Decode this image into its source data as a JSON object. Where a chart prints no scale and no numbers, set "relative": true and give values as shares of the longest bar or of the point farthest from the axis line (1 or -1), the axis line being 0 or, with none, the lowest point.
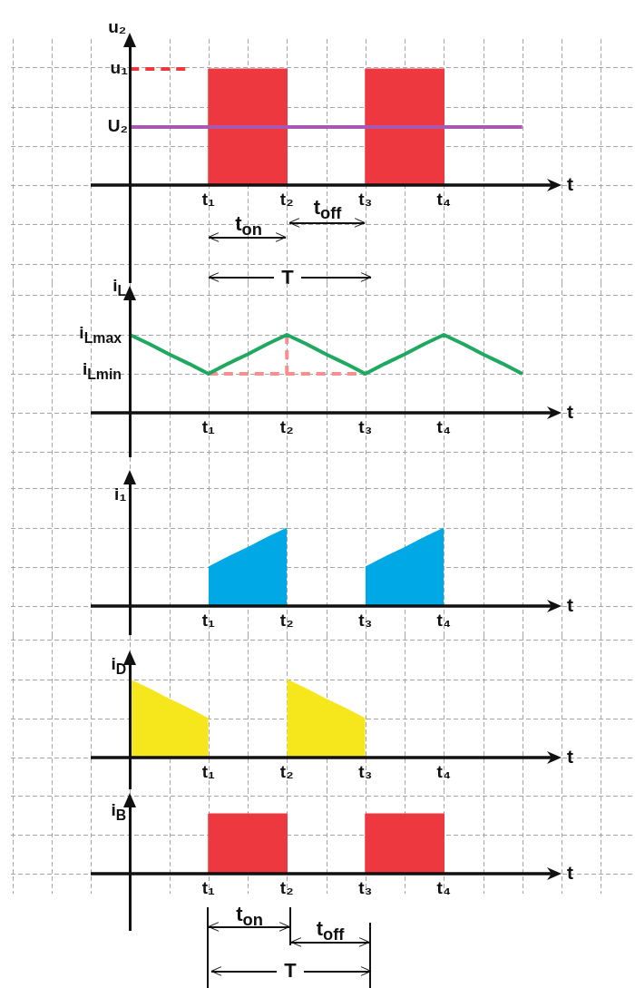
{
  "chart_data": [
    {
      "type": "area",
      "ylabel": "u₂",
      "xlabel": "t",
      "relative": true,
      "grid": true,
      "categories": [
        null,
        null,
        null,
        null,
        null,
        null,
        "t₁",
        null,
        null,
        null,
        "t₂",
        null,
        null,
        null,
        "t₃",
        null,
        null,
        null,
        "t₄",
        null,
        null,
        null,
        null,
        null,
        null
      ],
      "series": [
        {
          "color": "#ee3840",
          "x": [
            "t₁",
            "t₁",
            "t₂",
            "t₂"
          ],
          "values": [
            0,
            1,
            1,
            0
          ]
        },
        {
          "color": "#ee3840",
          "x": [
            "t₃",
            "t₃",
            "t₄",
            "t₄"
          ],
          "values": [
            0,
            1,
            1,
            0
          ]
        },
        {
          "type": "line",
          "color": "#a858b0",
          "values": [
            null,
            null,
            0.5,
            0.5,
            0.5,
            0.5,
            0.5,
            0.5,
            0.5,
            0.5,
            0.5,
            0.5,
            0.5,
            0.5,
            0.5,
            0.5,
            0.5,
            0.5,
            0.5,
            0.5,
            0.5,
            0.5,
            0.5,
            null,
            null
          ]
        },
        {
          "type": "line",
          "color": "#ee3840",
          "line_style": "dashed",
          "values": [
            null,
            null,
            1,
            1,
            1,
            1,
            null,
            null,
            null,
            null,
            null,
            null,
            null,
            null,
            null,
            null,
            null,
            null,
            null,
            null,
            null,
            null,
            null,
            null,
            null
          ]
        }
      ],
      "annotations": [
        "u₁",
        "U₂",
        "t$_{on}$",
        "t$_{off}$",
        "T"
      ]
    },
    {
      "type": "line",
      "ylabel": "i$_{L}$",
      "xlabel": "t",
      "relative": true,
      "grid": true,
      "categories": [
        null,
        null,
        null,
        null,
        null,
        null,
        "t₁",
        null,
        null,
        null,
        "t₂",
        null,
        null,
        null,
        "t₃",
        null,
        null,
        null,
        "t₄",
        null,
        null,
        null,
        null,
        null,
        null
      ],
      "series": [
        {
          "color": "#1ea860",
          "values": [
            null,
            null,
            1,
            0.88,
            0.75,
            0.63,
            0.5,
            0.63,
            0.75,
            0.88,
            1,
            0.88,
            0.75,
            0.63,
            0.5,
            0.63,
            0.75,
            0.88,
            1,
            0.88,
            0.75,
            0.63,
            0.5,
            null,
            null
          ]
        },
        {
          "color": "#f49090",
          "line_style": "dashed",
          "values": [
            null,
            null,
            null,
            null,
            null,
            null,
            0.5,
            0.5,
            0.5,
            0.5,
            0.5,
            0.5,
            0.5,
            0.5,
            0.5,
            null,
            null,
            null,
            null,
            null,
            null,
            null,
            null,
            null,
            null
          ]
        },
        {
          "color": "#f49090",
          "line_style": "dashed",
          "x": [
            "t₂",
            "t₂"
          ],
          "values": [
            1,
            0.5
          ]
        }
      ],
      "annotations": [
        "i$_{Lmax}$",
        "i$_{Lmin}$"
      ]
    },
    {
      "type": "area",
      "ylabel": "i₁",
      "xlabel": "t",
      "relative": true,
      "grid": true,
      "categories": [
        null,
        null,
        null,
        null,
        null,
        null,
        "t₁",
        null,
        null,
        null,
        "t₂",
        null,
        null,
        null,
        "t₃",
        null,
        null,
        null,
        "t₄",
        null,
        null,
        null,
        null,
        null,
        null
      ],
      "series": [
        {
          "color": "#00a9e6",
          "values": [
            null,
            null,
            null,
            null,
            null,
            null,
            0.5,
            0.63,
            0.75,
            0.88,
            1,
            null,
            null,
            null,
            0.5,
            0.63,
            0.75,
            0.88,
            1,
            null,
            null,
            null,
            null,
            null,
            null
          ]
        }
      ]
    },
    {
      "type": "area",
      "ylabel": "i$_{D}$",
      "xlabel": "t",
      "relative": true,
      "grid": true,
      "categories": [
        null,
        null,
        null,
        null,
        null,
        null,
        "t₁",
        null,
        null,
        null,
        "t₂",
        null,
        null,
        null,
        "t₃",
        null,
        null,
        null,
        "t₄",
        null,
        null,
        null,
        null,
        null,
        null
      ],
      "series": [
        {
          "color": "#f6e71c",
          "values": [
            null,
            null,
            1,
            0.88,
            0.75,
            0.63,
            0.5,
            null,
            null,
            null,
            1,
            0.88,
            0.75,
            0.63,
            0.5,
            null,
            null,
            null,
            null,
            null,
            null,
            null,
            null,
            null,
            null
          ]
        }
      ]
    },
    {
      "type": "area",
      "ylabel": "i$_{B}$",
      "xlabel": "t",
      "relative": true,
      "grid": true,
      "categories": [
        null,
        null,
        null,
        null,
        null,
        null,
        "t₁",
        null,
        null,
        null,
        "t₂",
        null,
        null,
        null,
        "t₃",
        null,
        null,
        null,
        "t₄",
        null,
        null,
        null,
        null,
        null,
        null
      ],
      "series": [
        {
          "color": "#ee3840",
          "x": [
            "t₁",
            "t₁",
            "t₂",
            "t₂"
          ],
          "values": [
            0,
            1,
            1,
            0
          ]
        },
        {
          "color": "#ee3840",
          "x": [
            "t₃",
            "t₃",
            "t₄",
            "t₄"
          ],
          "values": [
            0,
            1,
            1,
            0
          ]
        }
      ],
      "annotations": [
        "t$_{on}$",
        "t$_{off}$",
        "T"
      ]
    }
  ]
}
